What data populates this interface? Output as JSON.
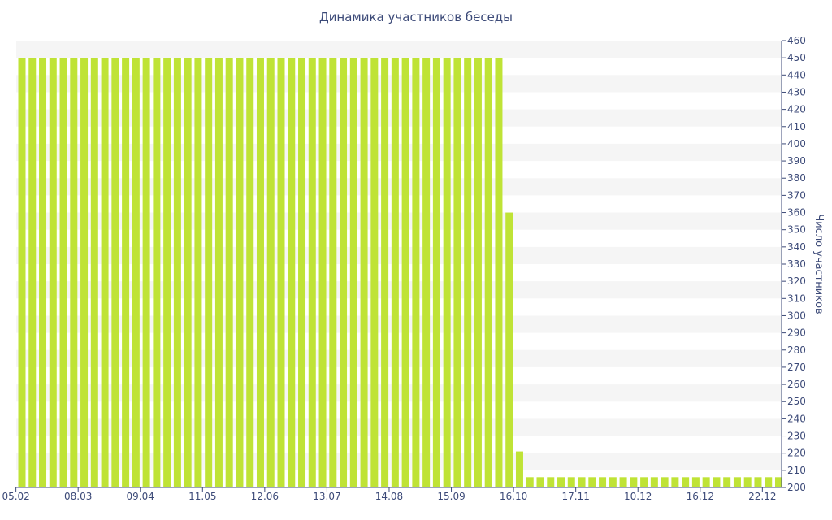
{
  "chart_data": {
    "type": "bar",
    "title": "Динамика участников беседы",
    "ylabel": "Число участников",
    "xlabel": "",
    "ylim": [
      200,
      460
    ],
    "y_ticks": [
      200,
      210,
      220,
      230,
      240,
      250,
      260,
      270,
      280,
      290,
      300,
      310,
      320,
      330,
      340,
      350,
      360,
      370,
      380,
      390,
      400,
      410,
      420,
      430,
      440,
      450,
      460
    ],
    "x_tick_labels": [
      "05.02",
      "08.03",
      "09.04",
      "11.05",
      "12.06",
      "13.07",
      "14.08",
      "15.09",
      "16.10",
      "17.11",
      "10.12",
      "16.12",
      "22.12"
    ],
    "x_tick_positions": [
      0,
      6,
      12,
      18,
      24,
      30,
      36,
      42,
      48,
      54,
      60,
      66,
      72
    ],
    "values": [
      450,
      450,
      450,
      450,
      450,
      450,
      450,
      450,
      450,
      450,
      450,
      450,
      450,
      450,
      450,
      450,
      450,
      450,
      450,
      450,
      450,
      450,
      450,
      450,
      450,
      450,
      450,
      450,
      450,
      450,
      450,
      450,
      450,
      450,
      450,
      450,
      450,
      450,
      450,
      450,
      450,
      450,
      450,
      450,
      450,
      450,
      450,
      360,
      221,
      206,
      206,
      206,
      206,
      206,
      206,
      206,
      206,
      206,
      206,
      206,
      206,
      206,
      206,
      206,
      206,
      206,
      206,
      206,
      206,
      206,
      206,
      206,
      206,
      206
    ],
    "bar_color": "#bfe336",
    "stripe_color": "#f5f5f5",
    "axis_color": "#3c4a78",
    "grid": "alternating horizontal bands",
    "y_axis_side": "right"
  }
}
